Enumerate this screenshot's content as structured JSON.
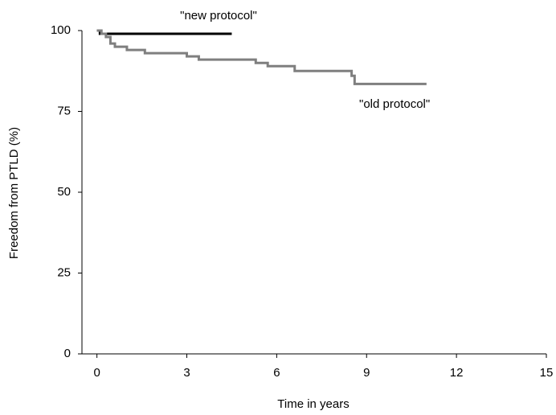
{
  "chart_data": {
    "type": "line",
    "step": true,
    "xlabel": "Time in years",
    "ylabel": "Freedom from PTLD (%)",
    "xlim": [
      -0.5,
      15
    ],
    "xticks": [
      0,
      3,
      6,
      9,
      12,
      15
    ],
    "ylim": [
      0,
      100
    ],
    "yticks": [
      0,
      25,
      50,
      75,
      100
    ],
    "grid": false,
    "series": [
      {
        "name": "\"new protocol\"",
        "color": "#000000",
        "x": [
          0,
          0.1,
          4.5
        ],
        "values": [
          100,
          99,
          99
        ]
      },
      {
        "name": "\"old protocol\"",
        "color": "#7f7f7f",
        "x": [
          0,
          0.15,
          0.3,
          0.45,
          0.6,
          1.0,
          1.6,
          3.0,
          3.4,
          5.3,
          5.7,
          6.6,
          8.5,
          8.6,
          11.0
        ],
        "values": [
          100,
          99,
          98,
          96,
          95,
          94,
          93,
          92,
          91,
          90,
          89,
          87.5,
          86,
          83.5,
          83.5
        ]
      }
    ]
  }
}
